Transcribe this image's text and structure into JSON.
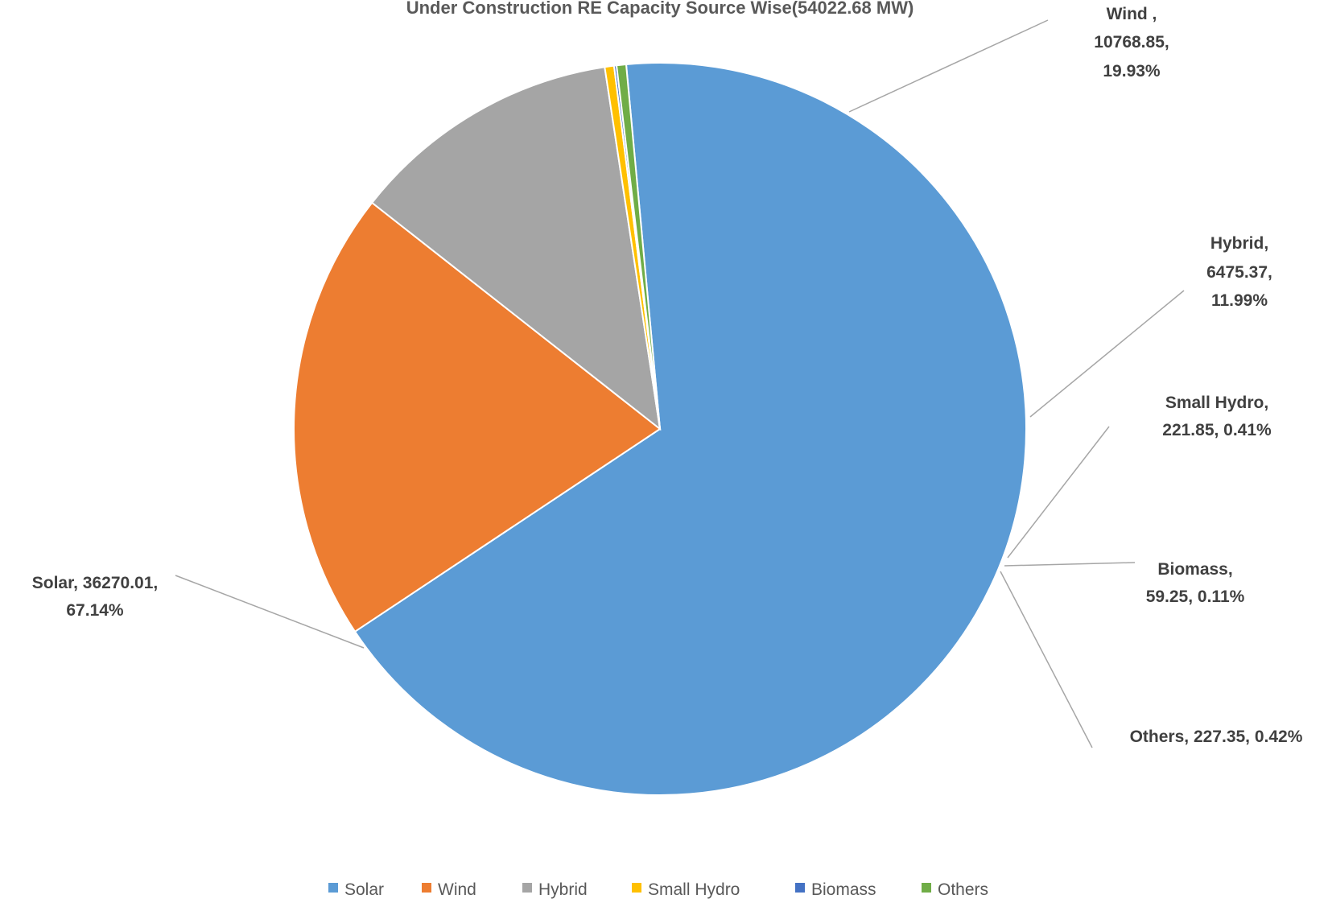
{
  "chart_data": {
    "type": "pie",
    "title": "Under Construction RE Capacity Source Wise(54022.68 MW)",
    "categories": [
      "Solar",
      "Wind",
      "Hybrid",
      "Small Hydro",
      "Biomass",
      "Others"
    ],
    "values": [
      36270.01,
      10768.85,
      6475.37,
      221.85,
      59.25,
      227.35
    ],
    "percent_labels": [
      "67.14%",
      "19.93%",
      "11.99%",
      "0.41%",
      "0.11%",
      "0.42%"
    ],
    "data_labels": [
      [
        "Solar, 36270.01,",
        "67.14%"
      ],
      [
        "Wind ,",
        "10768.85,",
        "19.93%"
      ],
      [
        "Hybrid,",
        "6475.37,",
        "11.99%"
      ],
      [
        "Small Hydro,",
        "221.85, 0.41%"
      ],
      [
        "Biomass,",
        "59.25, 0.11%"
      ],
      [
        "Others, 227.35, 0.42%"
      ]
    ],
    "colors": [
      "#5B9BD5",
      "#ED7D31",
      "#A5A5A5",
      "#FFC000",
      "#4472C4",
      "#70AD47"
    ],
    "legend_position": "bottom",
    "legend": [
      "Solar",
      "Wind",
      "Hybrid",
      "Small Hydro",
      "Biomass",
      "Others"
    ]
  }
}
